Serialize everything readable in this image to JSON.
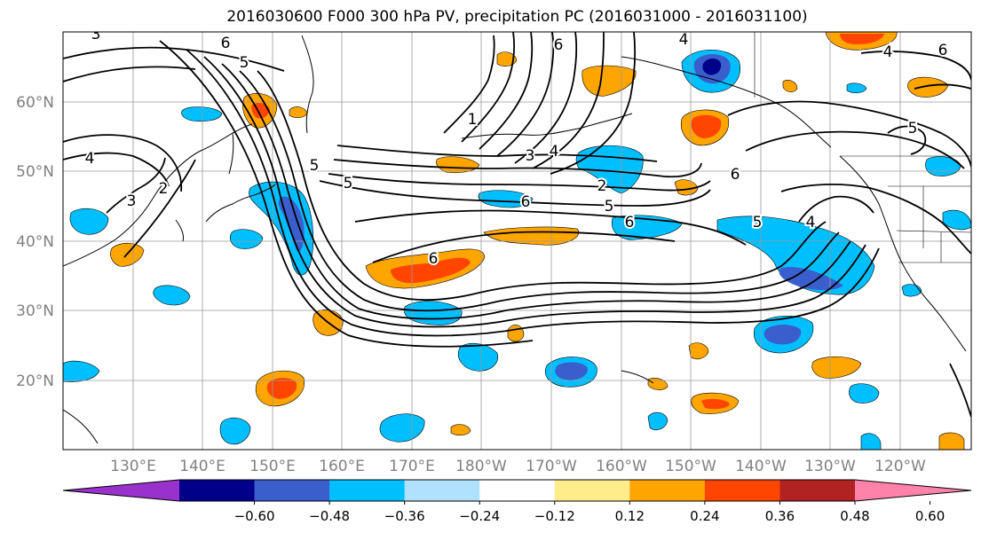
{
  "title": "2016030600 F000 300 hPa PV, precipitation PC (2016031000 - 2016031100)",
  "lat_labels": [
    "60°N",
    "50°N",
    "40°N",
    "30°N",
    "20°N"
  ],
  "lon_labels": [
    "130°E",
    "140°E",
    "150°E",
    "160°E",
    "170°E",
    "180°W",
    "170°W",
    "160°W",
    "150°W",
    "140°W",
    "130°W",
    "120°W"
  ],
  "colorbar": {
    "colors": [
      "#9932cc",
      "#00008b",
      "#3a5fcd",
      "#00bfff",
      "#b0e2ff",
      "#ffffff",
      "#ffec8b",
      "#ffa500",
      "#ff4500",
      "#b22222",
      "#ff82ab"
    ],
    "tick_labels": [
      "−0.60",
      "−0.48",
      "−0.36",
      "−0.24",
      "−0.12",
      "0.12",
      "0.24",
      "0.36",
      "0.48",
      "0.60"
    ]
  },
  "contour_labels": [
    {
      "text": "3"
    },
    {
      "text": "6"
    },
    {
      "text": "5"
    },
    {
      "text": "4"
    },
    {
      "text": "3"
    },
    {
      "text": "2"
    },
    {
      "text": "4"
    },
    {
      "text": "5"
    },
    {
      "text": "1"
    },
    {
      "text": "3"
    },
    {
      "text": "4"
    },
    {
      "text": "2"
    },
    {
      "text": "5"
    },
    {
      "text": "6"
    },
    {
      "text": "6"
    },
    {
      "text": "6"
    },
    {
      "text": "5"
    },
    {
      "text": "4"
    },
    {
      "text": "6"
    },
    {
      "text": "5"
    },
    {
      "text": "6"
    },
    {
      "text": "4"
    },
    {
      "text": "5"
    },
    {
      "text": "6"
    }
  ]
}
